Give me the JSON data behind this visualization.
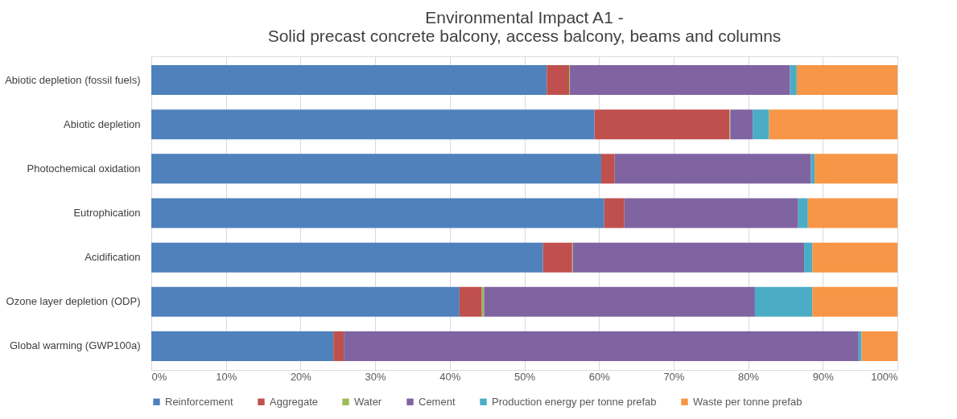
{
  "chart_data": {
    "type": "bar",
    "orientation": "horizontal",
    "stacked": true,
    "title": "Environmental Impact A1 -\nSolid precast concrete balcony, access balcony, beams and columns",
    "categories": [
      "Abiotic depletion (fossil fuels)",
      "Abiotic depletion",
      "Photochemical oxidation",
      "Eutrophication",
      "Acidification",
      "Ozone layer depletion (ODP)",
      "Global warming (GWP100a)"
    ],
    "series": [
      {
        "name": "Reinforcement",
        "color": "#4f81bd",
        "values": [
          53.0,
          59.4,
          60.3,
          60.7,
          52.5,
          41.3,
          24.4
        ]
      },
      {
        "name": "Aggregate",
        "color": "#c0504d",
        "values": [
          3.0,
          18.1,
          1.8,
          2.7,
          3.9,
          3.0,
          1.4
        ]
      },
      {
        "name": "Water",
        "color": "#9bbb59",
        "values": [
          0.1,
          0.1,
          0,
          0,
          0.1,
          0.3,
          0
        ]
      },
      {
        "name": "Cement",
        "color": "#8064a2",
        "values": [
          29.5,
          3.0,
          26.3,
          23.3,
          31.0,
          36.3,
          69.0
        ]
      },
      {
        "name": "Production energy per tonne prefab",
        "color": "#4bacc6",
        "values": [
          0.9,
          2.2,
          0.5,
          1.3,
          1.1,
          7.7,
          0.4
        ]
      },
      {
        "name": "Waste per tonne prefab",
        "color": "#f79646",
        "values": [
          13.5,
          17.2,
          11.1,
          12.0,
          11.4,
          11.4,
          4.8
        ]
      }
    ],
    "xlim": [
      0,
      100
    ],
    "xticks": [
      {
        "value": 0,
        "label": "0%"
      },
      {
        "value": 10,
        "label": "10%"
      },
      {
        "value": 20,
        "label": "20%"
      },
      {
        "value": 30,
        "label": "30%"
      },
      {
        "value": 40,
        "label": "40%"
      },
      {
        "value": 50,
        "label": "50%"
      },
      {
        "value": 60,
        "label": "60%"
      },
      {
        "value": 70,
        "label": "70%"
      },
      {
        "value": 80,
        "label": "80%"
      },
      {
        "value": 90,
        "label": "90%"
      },
      {
        "value": 100,
        "label": "100%"
      }
    ],
    "grid": "x",
    "legend": "bottom"
  }
}
